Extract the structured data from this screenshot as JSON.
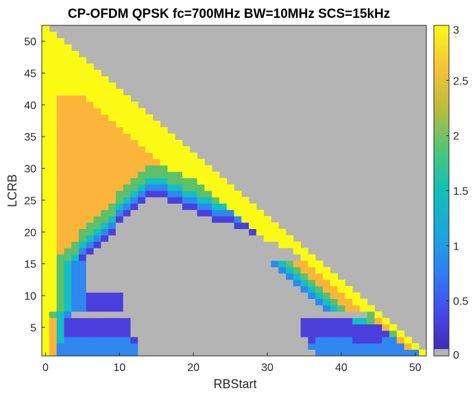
{
  "chart_data": {
    "type": "heatmap",
    "title": "CP-OFDM QPSK fc=700MHz BW=10MHz SCS=15kHz",
    "xlabel": "RBStart",
    "ylabel": "LCRB",
    "x_ticks": [
      "0",
      "10",
      "20",
      "30",
      "40",
      "50"
    ],
    "y_ticks": [
      "5",
      "10",
      "15",
      "20",
      "25",
      "30",
      "35",
      "40",
      "45",
      "50"
    ],
    "xlim": [
      -0.5,
      51.5
    ],
    "ylim": [
      0.5,
      52.5
    ],
    "colorbar": {
      "min": 0,
      "max": 3,
      "ticks": [
        "0",
        "0.5",
        "1",
        "1.5",
        "2",
        "2.5",
        "3"
      ]
    },
    "colors": {
      "invalid": "#b4b4b4",
      "level_0": "#b4b4b4",
      "level_1_low": "#4a3fdc",
      "level_1": "#2f87ef",
      "level_1_5": "#12bfc3",
      "level_2": "#5cc16a",
      "level_2_5": "#fbb53a",
      "level_3": "#fafa14"
    },
    "description_rows": [
      {
        "lcrb": 1,
        "segments": [
          [
            0,
            0,
            3
          ],
          [
            1,
            1,
            2.5
          ],
          [
            2,
            12,
            1
          ],
          [
            13,
            36,
            0
          ],
          [
            37,
            50,
            1
          ],
          [
            51,
            51,
            3
          ]
        ]
      },
      {
        "lcrb": 2,
        "segments": [
          [
            0,
            0,
            3
          ],
          [
            1,
            1,
            2.5
          ],
          [
            2,
            12,
            1
          ],
          [
            13,
            35,
            0
          ],
          [
            36,
            48,
            1
          ],
          [
            49,
            49,
            2.5
          ],
          [
            50,
            50,
            3
          ]
        ]
      },
      {
        "lcrb": 3,
        "segments": [
          [
            0,
            0,
            3
          ],
          [
            1,
            1,
            2.5
          ],
          [
            2,
            2,
            1.5
          ],
          [
            3,
            11,
            1
          ],
          [
            12,
            12,
            0.5
          ],
          [
            13,
            35,
            0
          ],
          [
            36,
            36,
            0.5
          ],
          [
            37,
            41,
            1
          ],
          [
            42,
            45,
            0.5
          ],
          [
            46,
            47,
            1
          ],
          [
            48,
            48,
            2.5
          ],
          [
            49,
            49,
            3
          ]
        ]
      },
      {
        "lcrb": 4,
        "segments": [
          [
            0,
            0,
            3
          ],
          [
            1,
            1,
            2.5
          ],
          [
            2,
            2,
            1.5
          ],
          [
            3,
            11,
            0.5
          ],
          [
            12,
            34,
            0
          ],
          [
            35,
            46,
            0.5
          ],
          [
            47,
            47,
            2
          ],
          [
            48,
            48,
            3
          ]
        ]
      },
      {
        "lcrb": 5,
        "segments": [
          [
            0,
            0,
            3
          ],
          [
            1,
            1,
            2.5
          ],
          [
            2,
            2,
            1.5
          ],
          [
            3,
            11,
            0.5
          ],
          [
            12,
            34,
            0
          ],
          [
            35,
            45,
            0.5
          ],
          [
            46,
            46,
            2.5
          ],
          [
            47,
            47,
            3
          ]
        ]
      },
      {
        "lcrb": 6,
        "segments": [
          [
            0,
            0,
            3
          ],
          [
            1,
            1,
            2.5
          ],
          [
            2,
            2,
            1.5
          ],
          [
            3,
            11,
            0.5
          ],
          [
            12,
            34,
            0
          ],
          [
            35,
            41,
            0.5
          ],
          [
            42,
            43,
            1.5
          ],
          [
            44,
            44,
            2
          ],
          [
            45,
            45,
            2.5
          ],
          [
            46,
            46,
            3
          ]
        ]
      },
      {
        "lcrb": 7,
        "segments": [
          [
            0,
            0,
            3
          ],
          [
            1,
            1,
            2
          ],
          [
            2,
            2,
            1.5
          ],
          [
            3,
            3,
            1
          ],
          [
            4,
            43,
            0
          ],
          [
            44,
            44,
            2
          ],
          [
            45,
            45,
            3
          ]
        ]
      }
    ]
  }
}
